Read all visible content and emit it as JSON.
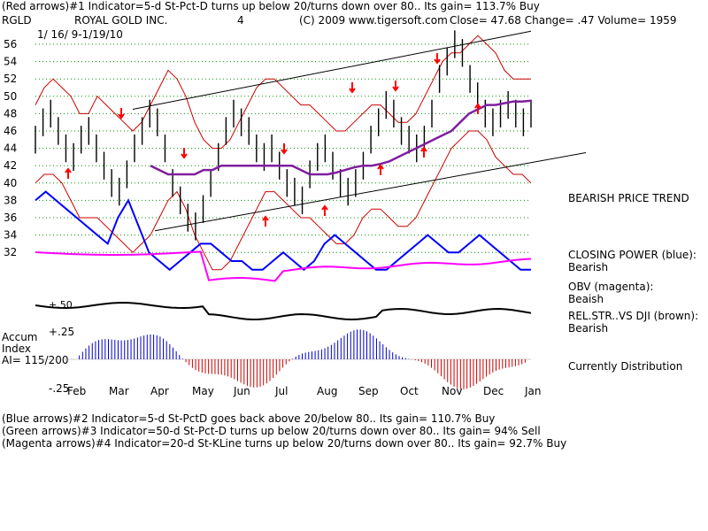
{
  "header": {
    "line1": "(Red arrows)#1 Indicator=5-d St-Pct-D  turns up below 20/turns down over 80..  Its gain= 113.7% Buy",
    "ticker": "RGLD",
    "company": "ROYAL GOLD INC.",
    "count": "4",
    "copyright": "(C) 2009 www.tigersoft.com",
    "close_text": "Close=  47.68  Change= .47  Volume= 1959",
    "date_range": "1/ 16/ 9-1/19/10"
  },
  "right_labels": {
    "trend": "BEARISH PRICE TREND",
    "closing_power_title": "CLOSING POWER (blue):",
    "closing_power_value": "Bearish",
    "obv_title": "OBV (magenta):",
    "obv_value": "Beaish",
    "relstr_title": "REL.STR..VS DJI (brown):",
    "relstr_value": "Bearish",
    "distribution": "Currently Distribution"
  },
  "accum": {
    "label1": "Accum",
    "label2": "Index",
    "label3": "AI= 115/200",
    "tick_top": "+.25",
    "tick_bottom": "-.25",
    "tick_mid": "+.50"
  },
  "footer": {
    "line1": "(Blue arrows)#2 Indicator=5-d St-PctD goes back above 20/below 80.. Its gain= 110.7% Buy",
    "line2": "(Green arrows)#3 Indicator=50-d St-Pct-D turns up below 20/turns down over 80.. Its gain= 94% Sell",
    "line3": "(Magenta arrows)#4 Indicator=20-d St-KLine turns up below 20/turns down over 80.. Its gain= 92.7% Buy"
  },
  "colors": {
    "price": "#000000",
    "band": "#cc0000",
    "ma": "#7f1f9f",
    "closing_power": "#0000ff",
    "obv": "#ff00ff",
    "relstr": "#000000",
    "accum_pos": "#0000cc",
    "accum_neg": "#cc0000",
    "arrow": "#ff0000",
    "grid": "#009900"
  },
  "chart_data": {
    "type": "line",
    "ylim": [
      31,
      57
    ],
    "y_ticks": [
      "56",
      "54",
      "52",
      "50",
      "48",
      "46",
      "44",
      "42",
      "40",
      "38",
      "36",
      "34",
      "32"
    ],
    "x_ticks": [
      "Feb",
      "Mar",
      "Apr",
      "May",
      "Jun",
      "Jul",
      "Aug",
      "Sep",
      "Oct",
      "Nov",
      "Dec",
      "Jan"
    ],
    "price_series": [
      45,
      47,
      48,
      46,
      44,
      43,
      45,
      46,
      44,
      42,
      40,
      39,
      41,
      44,
      46,
      48,
      47,
      44,
      40,
      38,
      36,
      35,
      37,
      40,
      43,
      46,
      48,
      47,
      46,
      44,
      43,
      44,
      42,
      40,
      39,
      38,
      41,
      43,
      44,
      42,
      40,
      39,
      40,
      42,
      45,
      47,
      49,
      48,
      46,
      45,
      44,
      45,
      48,
      52,
      54,
      56,
      55,
      52,
      50,
      48,
      47,
      48,
      49,
      48,
      47,
      48
    ],
    "ma_series": [
      null,
      null,
      null,
      null,
      null,
      null,
      null,
      null,
      null,
      null,
      null,
      null,
      null,
      42,
      41.5,
      41,
      41,
      41,
      41,
      41.5,
      41.5,
      42,
      42,
      42,
      42,
      42,
      42,
      42,
      42,
      42,
      41.5,
      41,
      41,
      41,
      41.2,
      41.5,
      41.8,
      42,
      42,
      42.2,
      42.5,
      43,
      43.5,
      44,
      44.5,
      45,
      45.5,
      46,
      47,
      48,
      48.5,
      49,
      49,
      49.2,
      49.4,
      49.4,
      49.5
    ],
    "upper_band": [
      49,
      51,
      52,
      51,
      50,
      48,
      48,
      50,
      49,
      48,
      47,
      46,
      47,
      49,
      51,
      53,
      52,
      50,
      47,
      45,
      44,
      44,
      45,
      47,
      49,
      51,
      52,
      52,
      51,
      50,
      49,
      49,
      48,
      47,
      46,
      46,
      47,
      48,
      49,
      49,
      48,
      47,
      47,
      48,
      50,
      52,
      54,
      55,
      55,
      56,
      57,
      56,
      55,
      53,
      52,
      52,
      52
    ],
    "lower_band": [
      40,
      41,
      41,
      40,
      38,
      36,
      36,
      36,
      35,
      34,
      33,
      32,
      33,
      34,
      36,
      38,
      39,
      37,
      34,
      32,
      30,
      30,
      31,
      33,
      35,
      37,
      39,
      39,
      38,
      37,
      36,
      36,
      35,
      34,
      33,
      33,
      34,
      36,
      37,
      37,
      36,
      35,
      35,
      36,
      38,
      40,
      42,
      44,
      45,
      46,
      46,
      45,
      43,
      42,
      41,
      41,
      40
    ],
    "closing_power_series": [
      38,
      39,
      38,
      37,
      36,
      35,
      34,
      33,
      36,
      38,
      35,
      32,
      31,
      30,
      31,
      32,
      33,
      33,
      32,
      31,
      31,
      30,
      30,
      31,
      32,
      31,
      30,
      31,
      33,
      34,
      33,
      32,
      31,
      30,
      30,
      31,
      32,
      33,
      34,
      33,
      32,
      32,
      33,
      34,
      33,
      32,
      31,
      30,
      30
    ]
  }
}
